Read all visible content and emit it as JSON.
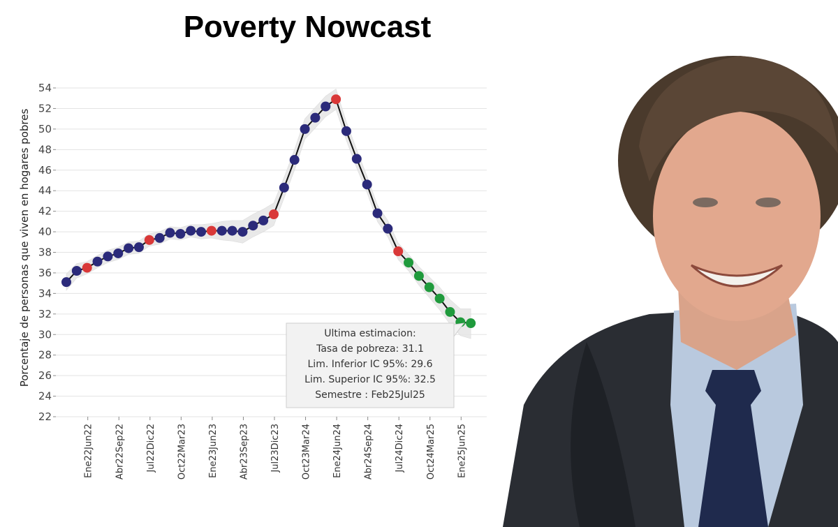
{
  "page": {
    "title": "Poverty Nowcast"
  },
  "chart_data": {
    "type": "line",
    "title": "Poverty Nowcast",
    "xlabel": "",
    "ylabel": "Porcentaje de personas que viven en hogares pobres",
    "ylim": [
      22,
      54
    ],
    "yticks": [
      22,
      24,
      26,
      28,
      30,
      32,
      34,
      36,
      38,
      40,
      42,
      44,
      46,
      48,
      50,
      52,
      54
    ],
    "grid": true,
    "x_tick_labels": [
      "Ene22Jun22",
      "Abr22Sep22",
      "Jul22Dic22",
      "Oct22Mar23",
      "Ene23Jun23",
      "Abr23Sep23",
      "Jul23Dic23",
      "Oct23Mar24",
      "Ene24Jun24",
      "Abr24Sep24",
      "Jul24Dic24",
      "Oct24Mar25",
      "Ene25Jun25"
    ],
    "x_tick_index": [
      2,
      5,
      8,
      11,
      14,
      17,
      20,
      23,
      26,
      29,
      32,
      35,
      38
    ],
    "values": [
      35.1,
      36.2,
      36.5,
      37.1,
      37.6,
      37.9,
      38.4,
      38.5,
      39.2,
      39.4,
      39.9,
      39.8,
      40.1,
      40.0,
      40.1,
      40.1,
      40.1,
      40.0,
      40.6,
      41.1,
      41.7,
      44.3,
      47.0,
      50.0,
      51.1,
      52.2,
      52.9,
      49.8,
      47.1,
      44.6,
      41.8,
      40.3,
      38.1,
      37.0,
      35.7,
      34.6,
      33.5,
      32.2,
      31.2,
      31.1
    ],
    "ci_lower": [
      34.3,
      35.5,
      35.9,
      36.5,
      37.0,
      37.3,
      37.8,
      37.9,
      38.6,
      38.8,
      39.3,
      39.2,
      39.5,
      39.3,
      39.4,
      39.2,
      39.1,
      38.9,
      39.5,
      40.0,
      40.6,
      43.3,
      46.0,
      49.0,
      50.1,
      51.2,
      51.9,
      48.9,
      46.2,
      43.8,
      41.0,
      39.5,
      37.3,
      36.2,
      34.8,
      33.6,
      32.4,
      31.0,
      29.9,
      29.6
    ],
    "ci_upper": [
      35.9,
      36.9,
      37.1,
      37.7,
      38.2,
      38.5,
      39.0,
      39.1,
      39.8,
      40.0,
      40.5,
      40.4,
      40.7,
      40.7,
      40.8,
      41.0,
      41.1,
      41.1,
      41.7,
      42.2,
      42.8,
      45.3,
      48.0,
      51.0,
      52.1,
      53.2,
      53.9,
      50.7,
      48.0,
      45.4,
      42.6,
      41.1,
      38.9,
      37.8,
      36.6,
      35.6,
      34.6,
      33.4,
      32.5,
      32.5
    ],
    "point_colors": [
      "#2b2a7a",
      "#2b2a7a",
      "#d93838",
      "#2b2a7a",
      "#2b2a7a",
      "#2b2a7a",
      "#2b2a7a",
      "#2b2a7a",
      "#d93838",
      "#2b2a7a",
      "#2b2a7a",
      "#2b2a7a",
      "#2b2a7a",
      "#2b2a7a",
      "#d93838",
      "#2b2a7a",
      "#2b2a7a",
      "#2b2a7a",
      "#2b2a7a",
      "#2b2a7a",
      "#d93838",
      "#2b2a7a",
      "#2b2a7a",
      "#2b2a7a",
      "#2b2a7a",
      "#2b2a7a",
      "#d93838",
      "#2b2a7a",
      "#2b2a7a",
      "#2b2a7a",
      "#2b2a7a",
      "#2b2a7a",
      "#d93838",
      "#1f9a3c",
      "#1f9a3c",
      "#1f9a3c",
      "#1f9a3c",
      "#1f9a3c",
      "#1f9a3c",
      "#1f9a3c"
    ],
    "annotation": {
      "lines": [
        "Ultima estimacion:",
        "Tasa de pobreza:  31.1",
        "Lim. Inferior IC 95%:  29.6",
        "Lim. Superior IC 95%:  32.5",
        "Semestre : Feb25Jul25"
      ]
    },
    "colors": {
      "line": "#111111",
      "band": "#e6e6e6",
      "grid": "#e3e3e3"
    }
  }
}
